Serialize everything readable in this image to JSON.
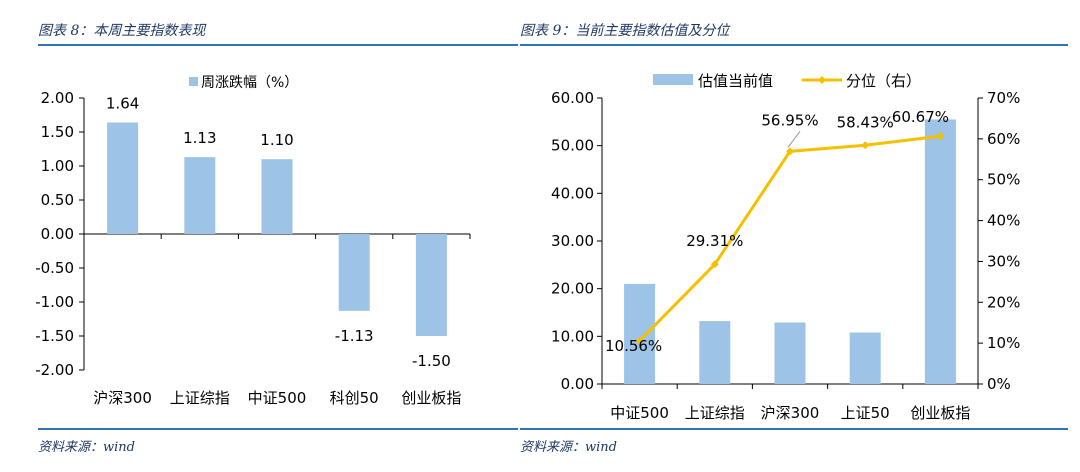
{
  "left": {
    "title": "图表 8：本周主要指数表现",
    "source": "资料来源：wind"
  },
  "right": {
    "title": "图表 9：当前主要指数估值及分位",
    "source": "资料来源：wind"
  },
  "colors": {
    "bar": "#9dc3e6",
    "line": "#f5c000",
    "axis": "#000000",
    "rule": "#2e75b6"
  },
  "chart_data": [
    {
      "type": "bar",
      "categories": [
        "沪深300",
        "上证综指",
        "中证500",
        "科创50",
        "创业板指"
      ],
      "series": [
        {
          "name": "周涨跌幅（%）",
          "values": [
            1.64,
            1.13,
            1.1,
            -1.13,
            -1.5
          ]
        }
      ],
      "data_labels": [
        "1.64",
        "1.13",
        "1.10",
        "-1.13",
        "-1.50"
      ],
      "y_ticks": [
        "2.00",
        "1.50",
        "1.00",
        "0.50",
        "0.00",
        "-0.50",
        "-1.00",
        "-1.50",
        "-2.00"
      ],
      "ylim": [
        -2,
        2
      ],
      "grid": false,
      "legend_position": "top-right"
    },
    {
      "type": "bar",
      "categories": [
        "中证500",
        "上证综指",
        "沪深300",
        "上证50",
        "创业板指"
      ],
      "series": [
        {
          "name": "估值当前值",
          "type": "bar",
          "axis": "left",
          "values": [
            21.0,
            13.2,
            12.9,
            10.8,
            55.5
          ]
        },
        {
          "name": "分位（右）",
          "type": "line",
          "axis": "right",
          "values": [
            10.56,
            29.31,
            56.95,
            58.43,
            60.67
          ]
        }
      ],
      "line_labels": [
        "10.56%",
        "29.31%",
        "56.95%",
        "58.43%",
        "60.67%"
      ],
      "y_ticks": [
        "60.00",
        "50.00",
        "40.00",
        "30.00",
        "20.00",
        "10.00",
        "0.00"
      ],
      "y2_ticks": [
        "70%",
        "60%",
        "50%",
        "40%",
        "30%",
        "20%",
        "10%",
        "0%"
      ],
      "ylim": [
        0,
        60
      ],
      "y2lim": [
        0,
        70
      ],
      "grid": false,
      "legend_position": "top-center"
    }
  ]
}
